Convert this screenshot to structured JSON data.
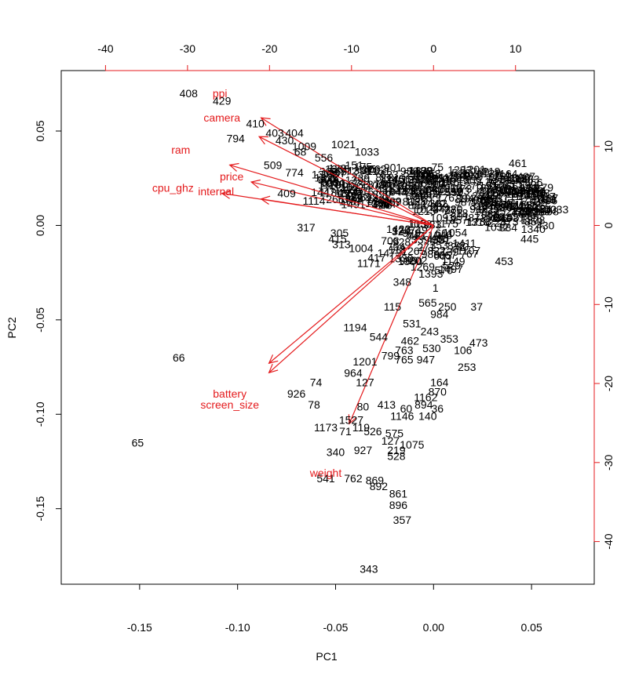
{
  "chart_data": {
    "type": "scatter",
    "subtype": "biplot",
    "title": "",
    "xlabel": "PC1",
    "ylabel": "PC2",
    "xlim": [
      -0.19,
      0.082
    ],
    "ylim": [
      -0.19,
      0.082
    ],
    "x_ticks": [
      -0.15,
      -0.1,
      -0.05,
      0.0,
      0.05
    ],
    "x_tick_labels": [
      "-0.15",
      "-0.10",
      "-0.05",
      "0.00",
      "0.05"
    ],
    "y_ticks": [
      -0.15,
      -0.1,
      -0.05,
      0.0,
      0.05
    ],
    "y_tick_labels": [
      "-0.15",
      "-0.10",
      "-0.05",
      "0.00",
      "0.05"
    ],
    "top_axis": {
      "lim": [
        -45.4,
        19.6
      ],
      "ticks": [
        -40,
        -30,
        -20,
        -10,
        0,
        10
      ],
      "tick_labels": [
        "-40",
        "-30",
        "-20",
        "-10",
        "0",
        "10"
      ],
      "color": "#e41a1c"
    },
    "right_axis": {
      "lim": [
        -45.4,
        19.6
      ],
      "ticks": [
        -40,
        -30,
        -20,
        -10,
        0,
        10
      ],
      "tick_labels": [
        "-40",
        "-30",
        "-20",
        "-10",
        "0",
        "10"
      ],
      "color": "#e41a1c"
    },
    "point_color": "#000000",
    "loading_color": "#e41a1c",
    "points": [
      {
        "label": "408",
        "x": -0.125,
        "y": 0.07
      },
      {
        "label": "429",
        "x": -0.108,
        "y": 0.066
      },
      {
        "label": "410",
        "x": -0.091,
        "y": 0.054
      },
      {
        "label": "403",
        "x": -0.081,
        "y": 0.049
      },
      {
        "label": "404",
        "x": -0.071,
        "y": 0.049
      },
      {
        "label": "794",
        "x": -0.101,
        "y": 0.046
      },
      {
        "label": "430",
        "x": -0.076,
        "y": 0.045
      },
      {
        "label": "68",
        "x": -0.068,
        "y": 0.039
      },
      {
        "label": "1009",
        "x": -0.066,
        "y": 0.042
      },
      {
        "label": "1021",
        "x": -0.046,
        "y": 0.043
      },
      {
        "label": "1033",
        "x": -0.034,
        "y": 0.039
      },
      {
        "label": "556",
        "x": -0.056,
        "y": 0.036
      },
      {
        "label": "509",
        "x": -0.082,
        "y": 0.032
      },
      {
        "label": "774",
        "x": -0.071,
        "y": 0.028
      },
      {
        "label": "409",
        "x": -0.075,
        "y": 0.017
      },
      {
        "label": "1114",
        "x": -0.061,
        "y": 0.013
      },
      {
        "label": "317",
        "x": -0.065,
        "y": -0.001
      },
      {
        "label": "305",
        "x": -0.048,
        "y": -0.004
      },
      {
        "label": "415",
        "x": -0.049,
        "y": -0.007
      },
      {
        "label": "313",
        "x": -0.047,
        "y": -0.01
      },
      {
        "label": "1004",
        "x": -0.037,
        "y": -0.012
      },
      {
        "label": "417",
        "x": -0.029,
        "y": -0.017
      },
      {
        "label": "1171",
        "x": -0.033,
        "y": -0.02
      },
      {
        "label": "1300",
        "x": -0.012,
        "y": -0.019
      },
      {
        "label": "75",
        "x": 0.002,
        "y": 0.031
      },
      {
        "label": "461",
        "x": 0.043,
        "y": 0.033
      },
      {
        "label": "445",
        "x": 0.049,
        "y": -0.007
      },
      {
        "label": "453",
        "x": 0.036,
        "y": -0.019
      },
      {
        "label": "430",
        "x": 0.057,
        "y": 0.0
      },
      {
        "label": "348",
        "x": -0.016,
        "y": -0.03
      },
      {
        "label": "1",
        "x": 0.001,
        "y": -0.033
      },
      {
        "label": "565",
        "x": -0.003,
        "y": -0.041
      },
      {
        "label": "250",
        "x": 0.007,
        "y": -0.043
      },
      {
        "label": "37",
        "x": 0.022,
        "y": -0.043
      },
      {
        "label": "115",
        "x": -0.021,
        "y": -0.043
      },
      {
        "label": "984",
        "x": 0.003,
        "y": -0.047
      },
      {
        "label": "531",
        "x": -0.011,
        "y": -0.052
      },
      {
        "label": "1194",
        "x": -0.04,
        "y": -0.054
      },
      {
        "label": "243",
        "x": -0.002,
        "y": -0.056
      },
      {
        "label": "544",
        "x": -0.028,
        "y": -0.059
      },
      {
        "label": "353",
        "x": 0.008,
        "y": -0.06
      },
      {
        "label": "462",
        "x": -0.012,
        "y": -0.061
      },
      {
        "label": "473",
        "x": 0.023,
        "y": -0.062
      },
      {
        "label": "530",
        "x": -0.001,
        "y": -0.065
      },
      {
        "label": "763",
        "x": -0.015,
        "y": -0.066
      },
      {
        "label": "106",
        "x": 0.015,
        "y": -0.066
      },
      {
        "label": "799",
        "x": -0.022,
        "y": -0.069
      },
      {
        "label": "765",
        "x": -0.015,
        "y": -0.071
      },
      {
        "label": "947",
        "x": -0.004,
        "y": -0.071
      },
      {
        "label": "1201",
        "x": -0.035,
        "y": -0.072
      },
      {
        "label": "253",
        "x": 0.017,
        "y": -0.075
      },
      {
        "label": "964",
        "x": -0.041,
        "y": -0.078
      },
      {
        "label": "127",
        "x": -0.035,
        "y": -0.083
      },
      {
        "label": "164",
        "x": 0.003,
        "y": -0.083
      },
      {
        "label": "74",
        "x": -0.06,
        "y": -0.083
      },
      {
        "label": "870",
        "x": 0.002,
        "y": -0.088
      },
      {
        "label": "926",
        "x": -0.07,
        "y": -0.089
      },
      {
        "label": "1162",
        "x": -0.004,
        "y": -0.091
      },
      {
        "label": "78",
        "x": -0.061,
        "y": -0.095
      },
      {
        "label": "413",
        "x": -0.024,
        "y": -0.095
      },
      {
        "label": "894",
        "x": -0.005,
        "y": -0.095
      },
      {
        "label": "80",
        "x": -0.036,
        "y": -0.096
      },
      {
        "label": "36",
        "x": 0.002,
        "y": -0.097
      },
      {
        "label": "60",
        "x": -0.014,
        "y": -0.097
      },
      {
        "label": "1146",
        "x": -0.016,
        "y": -0.101
      },
      {
        "label": "140",
        "x": -0.003,
        "y": -0.101
      },
      {
        "label": "1527",
        "x": -0.042,
        "y": -0.103
      },
      {
        "label": "1173",
        "x": -0.055,
        "y": -0.107
      },
      {
        "label": "119",
        "x": -0.037,
        "y": -0.107
      },
      {
        "label": "71",
        "x": -0.045,
        "y": -0.109
      },
      {
        "label": "526",
        "x": -0.031,
        "y": -0.109
      },
      {
        "label": "575",
        "x": -0.02,
        "y": -0.11
      },
      {
        "label": "1075",
        "x": -0.011,
        "y": -0.116
      },
      {
        "label": "127",
        "x": -0.022,
        "y": -0.114
      },
      {
        "label": "340",
        "x": -0.05,
        "y": -0.12
      },
      {
        "label": "927",
        "x": -0.036,
        "y": -0.119
      },
      {
        "label": "219",
        "x": -0.019,
        "y": -0.119
      },
      {
        "label": "528",
        "x": -0.019,
        "y": -0.122
      },
      {
        "label": "541",
        "x": -0.055,
        "y": -0.134
      },
      {
        "label": "762",
        "x": -0.041,
        "y": -0.134
      },
      {
        "label": "869",
        "x": -0.03,
        "y": -0.135
      },
      {
        "label": "892",
        "x": -0.028,
        "y": -0.138
      },
      {
        "label": "861",
        "x": -0.018,
        "y": -0.142
      },
      {
        "label": "896",
        "x": -0.018,
        "y": -0.148
      },
      {
        "label": "357",
        "x": -0.016,
        "y": -0.156
      },
      {
        "label": "343",
        "x": -0.033,
        "y": -0.182
      },
      {
        "label": "66",
        "x": -0.13,
        "y": -0.07
      },
      {
        "label": "65",
        "x": -0.151,
        "y": -0.115
      }
    ],
    "loadings": [
      {
        "label": "ppi",
        "x_end": -0.088,
        "y_end": 0.057,
        "label_x": -0.109,
        "label_y": 0.07
      },
      {
        "label": "camera",
        "x_end": -0.089,
        "y_end": 0.047,
        "label_x": -0.108,
        "label_y": 0.057
      },
      {
        "label": "ram",
        "x_end": -0.104,
        "y_end": 0.032,
        "label_x": -0.129,
        "label_y": 0.04
      },
      {
        "label": "price",
        "x_end": -0.093,
        "y_end": 0.023,
        "label_x": -0.103,
        "label_y": 0.026
      },
      {
        "label": "cpu_ghz",
        "x_end": -0.108,
        "y_end": 0.017,
        "label_x": -0.133,
        "label_y": 0.02
      },
      {
        "label": "internal",
        "x_end": -0.088,
        "y_end": 0.014,
        "label_x": -0.111,
        "label_y": 0.018
      },
      {
        "label": "battery",
        "x_end": -0.084,
        "y_end": -0.073,
        "label_x": -0.104,
        "label_y": -0.089
      },
      {
        "label": "screen_size",
        "x_end": -0.084,
        "y_end": -0.078,
        "label_x": -0.104,
        "label_y": -0.095
      },
      {
        "label": "weight",
        "x_end": -0.043,
        "y_end": -0.105,
        "label_x": -0.055,
        "label_y": -0.131
      }
    ]
  }
}
